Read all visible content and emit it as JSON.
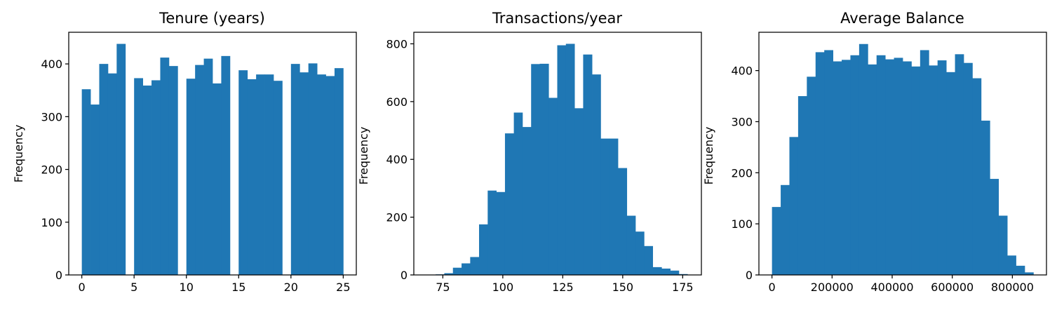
{
  "chart_data": [
    {
      "type": "bar",
      "title": "Tenure (years)",
      "ylabel": "Frequency",
      "xlabel": "",
      "xlim": [
        -1.25,
        26.25
      ],
      "ylim": [
        0,
        460
      ],
      "xticks": [
        0,
        5,
        10,
        15,
        20,
        25
      ],
      "yticks": [
        0,
        100,
        200,
        300,
        400
      ],
      "bins": [
        {
          "x0": 0.0,
          "x1": 0.833,
          "value": 352
        },
        {
          "x0": 0.833,
          "x1": 1.667,
          "value": 323
        },
        {
          "x0": 1.667,
          "x1": 2.5,
          "value": 400
        },
        {
          "x0": 2.5,
          "x1": 3.333,
          "value": 382
        },
        {
          "x0": 3.333,
          "x1": 4.167,
          "value": 438
        },
        {
          "x0": 4.167,
          "x1": 5.0,
          "value": 0
        },
        {
          "x0": 5.0,
          "x1": 5.833,
          "value": 373
        },
        {
          "x0": 5.833,
          "x1": 6.667,
          "value": 359
        },
        {
          "x0": 6.667,
          "x1": 7.5,
          "value": 369
        },
        {
          "x0": 7.5,
          "x1": 8.333,
          "value": 412
        },
        {
          "x0": 8.333,
          "x1": 9.167,
          "value": 396
        },
        {
          "x0": 9.167,
          "x1": 10.0,
          "value": 0
        },
        {
          "x0": 10.0,
          "x1": 10.833,
          "value": 372
        },
        {
          "x0": 10.833,
          "x1": 11.667,
          "value": 398
        },
        {
          "x0": 11.667,
          "x1": 12.5,
          "value": 410
        },
        {
          "x0": 12.5,
          "x1": 13.333,
          "value": 363
        },
        {
          "x0": 13.333,
          "x1": 14.167,
          "value": 415
        },
        {
          "x0": 14.167,
          "x1": 15.0,
          "value": 0
        },
        {
          "x0": 15.0,
          "x1": 15.833,
          "value": 388
        },
        {
          "x0": 15.833,
          "x1": 16.667,
          "value": 371
        },
        {
          "x0": 16.667,
          "x1": 17.5,
          "value": 380
        },
        {
          "x0": 17.5,
          "x1": 18.333,
          "value": 380
        },
        {
          "x0": 18.333,
          "x1": 19.167,
          "value": 368
        },
        {
          "x0": 19.167,
          "x1": 20.0,
          "value": 0
        },
        {
          "x0": 20.0,
          "x1": 20.833,
          "value": 400
        },
        {
          "x0": 20.833,
          "x1": 21.667,
          "value": 384
        },
        {
          "x0": 21.667,
          "x1": 22.5,
          "value": 401
        },
        {
          "x0": 22.5,
          "x1": 23.333,
          "value": 380
        },
        {
          "x0": 23.333,
          "x1": 24.167,
          "value": 377
        },
        {
          "x0": 24.167,
          "x1": 25.0,
          "value": 392
        }
      ],
      "color": "#1f77b4"
    },
    {
      "type": "bar",
      "title": "Transactions/year",
      "ylabel": "Frequency",
      "xlabel": "",
      "xlim": [
        62.9,
        182.8
      ],
      "ylim": [
        0,
        840
      ],
      "xticks": [
        75,
        100,
        125,
        150,
        175
      ],
      "yticks": [
        0,
        200,
        400,
        600,
        800
      ],
      "bins": [
        {
          "x0": 68.3,
          "x1": 72.0,
          "value": 1
        },
        {
          "x0": 72.0,
          "x1": 75.6,
          "value": 2
        },
        {
          "x0": 75.6,
          "x1": 79.2,
          "value": 6
        },
        {
          "x0": 79.2,
          "x1": 82.8,
          "value": 25
        },
        {
          "x0": 82.8,
          "x1": 86.4,
          "value": 40
        },
        {
          "x0": 86.4,
          "x1": 90.1,
          "value": 62
        },
        {
          "x0": 90.1,
          "x1": 93.7,
          "value": 175
        },
        {
          "x0": 93.7,
          "x1": 97.3,
          "value": 292
        },
        {
          "x0": 97.3,
          "x1": 100.9,
          "value": 287
        },
        {
          "x0": 100.9,
          "x1": 104.6,
          "value": 490
        },
        {
          "x0": 104.6,
          "x1": 108.2,
          "value": 562
        },
        {
          "x0": 108.2,
          "x1": 111.8,
          "value": 512
        },
        {
          "x0": 111.8,
          "x1": 115.4,
          "value": 730
        },
        {
          "x0": 115.4,
          "x1": 119.1,
          "value": 731
        },
        {
          "x0": 119.1,
          "x1": 122.7,
          "value": 613
        },
        {
          "x0": 122.7,
          "x1": 126.3,
          "value": 795
        },
        {
          "x0": 126.3,
          "x1": 129.9,
          "value": 800
        },
        {
          "x0": 129.9,
          "x1": 133.5,
          "value": 577
        },
        {
          "x0": 133.5,
          "x1": 137.2,
          "value": 763
        },
        {
          "x0": 137.2,
          "x1": 140.8,
          "value": 694
        },
        {
          "x0": 140.8,
          "x1": 144.4,
          "value": 472
        },
        {
          "x0": 144.4,
          "x1": 148.0,
          "value": 472
        },
        {
          "x0": 148.0,
          "x1": 151.7,
          "value": 370
        },
        {
          "x0": 151.7,
          "x1": 155.3,
          "value": 205
        },
        {
          "x0": 155.3,
          "x1": 158.9,
          "value": 150
        },
        {
          "x0": 158.9,
          "x1": 162.5,
          "value": 100
        },
        {
          "x0": 162.5,
          "x1": 166.2,
          "value": 27
        },
        {
          "x0": 166.2,
          "x1": 169.8,
          "value": 22
        },
        {
          "x0": 169.8,
          "x1": 173.4,
          "value": 15
        },
        {
          "x0": 173.4,
          "x1": 177.0,
          "value": 3
        }
      ],
      "color": "#1f77b4"
    },
    {
      "type": "bar",
      "title": "Average Balance",
      "ylabel": "Frequency",
      "xlabel": "",
      "xlim": [
        -43500,
        913500
      ],
      "ylim": [
        0,
        475
      ],
      "xticks": [
        0,
        200000,
        400000,
        600000,
        800000
      ],
      "yticks": [
        0,
        100,
        200,
        300,
        400
      ],
      "bins": [
        {
          "x0": 0,
          "x1": 29000,
          "value": 133
        },
        {
          "x0": 29000,
          "x1": 58000,
          "value": 176
        },
        {
          "x0": 58000,
          "x1": 87000,
          "value": 270
        },
        {
          "x0": 87000,
          "x1": 116000,
          "value": 350
        },
        {
          "x0": 116000,
          "x1": 145000,
          "value": 388
        },
        {
          "x0": 145000,
          "x1": 174000,
          "value": 436
        },
        {
          "x0": 174000,
          "x1": 203000,
          "value": 440
        },
        {
          "x0": 203000,
          "x1": 232000,
          "value": 418
        },
        {
          "x0": 232000,
          "x1": 261000,
          "value": 421
        },
        {
          "x0": 261000,
          "x1": 290000,
          "value": 430
        },
        {
          "x0": 290000,
          "x1": 319000,
          "value": 452
        },
        {
          "x0": 319000,
          "x1": 348000,
          "value": 412
        },
        {
          "x0": 348000,
          "x1": 377000,
          "value": 430
        },
        {
          "x0": 377000,
          "x1": 406000,
          "value": 422
        },
        {
          "x0": 406000,
          "x1": 435000,
          "value": 425
        },
        {
          "x0": 435000,
          "x1": 464000,
          "value": 418
        },
        {
          "x0": 464000,
          "x1": 493000,
          "value": 408
        },
        {
          "x0": 493000,
          "x1": 522000,
          "value": 440
        },
        {
          "x0": 522000,
          "x1": 551000,
          "value": 410
        },
        {
          "x0": 551000,
          "x1": 580000,
          "value": 420
        },
        {
          "x0": 580000,
          "x1": 609000,
          "value": 397
        },
        {
          "x0": 609000,
          "x1": 638000,
          "value": 432
        },
        {
          "x0": 638000,
          "x1": 667000,
          "value": 415
        },
        {
          "x0": 667000,
          "x1": 696000,
          "value": 385
        },
        {
          "x0": 696000,
          "x1": 725000,
          "value": 302
        },
        {
          "x0": 725000,
          "x1": 754000,
          "value": 188
        },
        {
          "x0": 754000,
          "x1": 783000,
          "value": 116
        },
        {
          "x0": 783000,
          "x1": 812000,
          "value": 38
        },
        {
          "x0": 812000,
          "x1": 841000,
          "value": 18
        },
        {
          "x0": 841000,
          "x1": 870000,
          "value": 5
        }
      ],
      "color": "#1f77b4"
    }
  ]
}
